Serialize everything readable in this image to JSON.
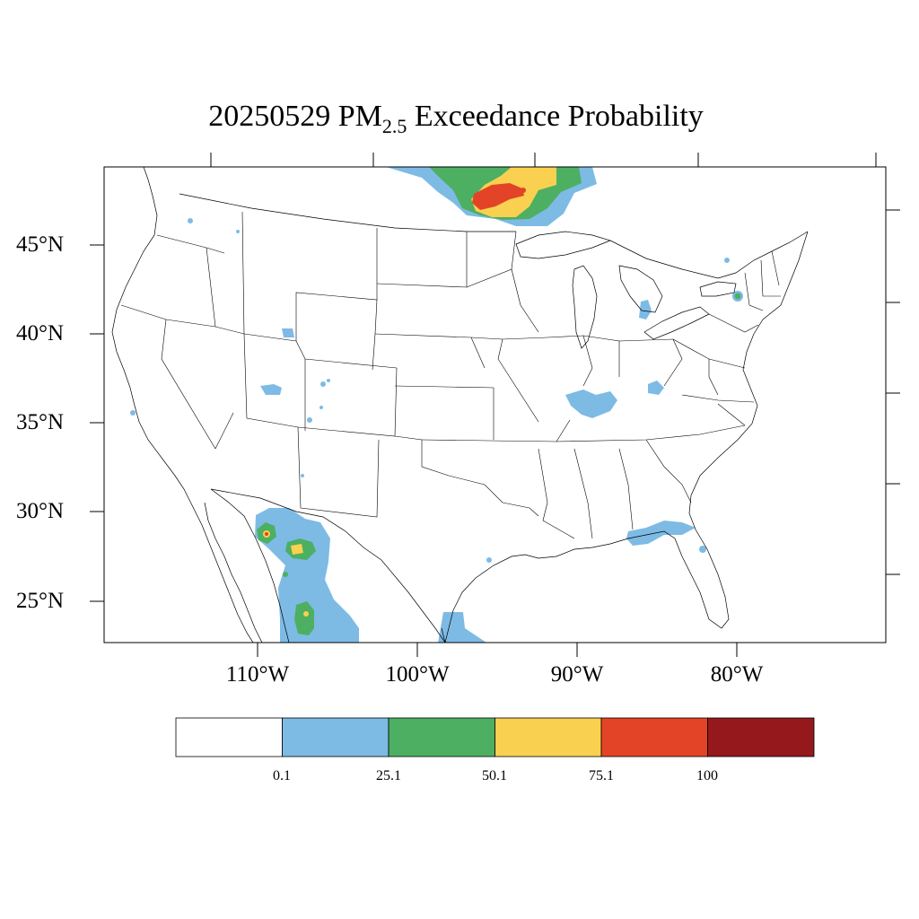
{
  "title": {
    "prefix": "20250529 PM",
    "subscript": "2.5",
    "suffix": " Exceedance Probability"
  },
  "map": {
    "lat_labels": [
      "45°N",
      "40°N",
      "35°N",
      "30°N",
      "25°N"
    ],
    "lon_labels": [
      "110°W",
      "100°W",
      "90°W",
      "80°W"
    ]
  },
  "legend": {
    "breaks": [
      "0.1",
      "25.1",
      "50.1",
      "75.1",
      "100"
    ],
    "colors": [
      "#ffffff",
      "#7dbbe5",
      "#4daf62",
      "#f9d050",
      "#e34326",
      "#95191c"
    ]
  }
}
